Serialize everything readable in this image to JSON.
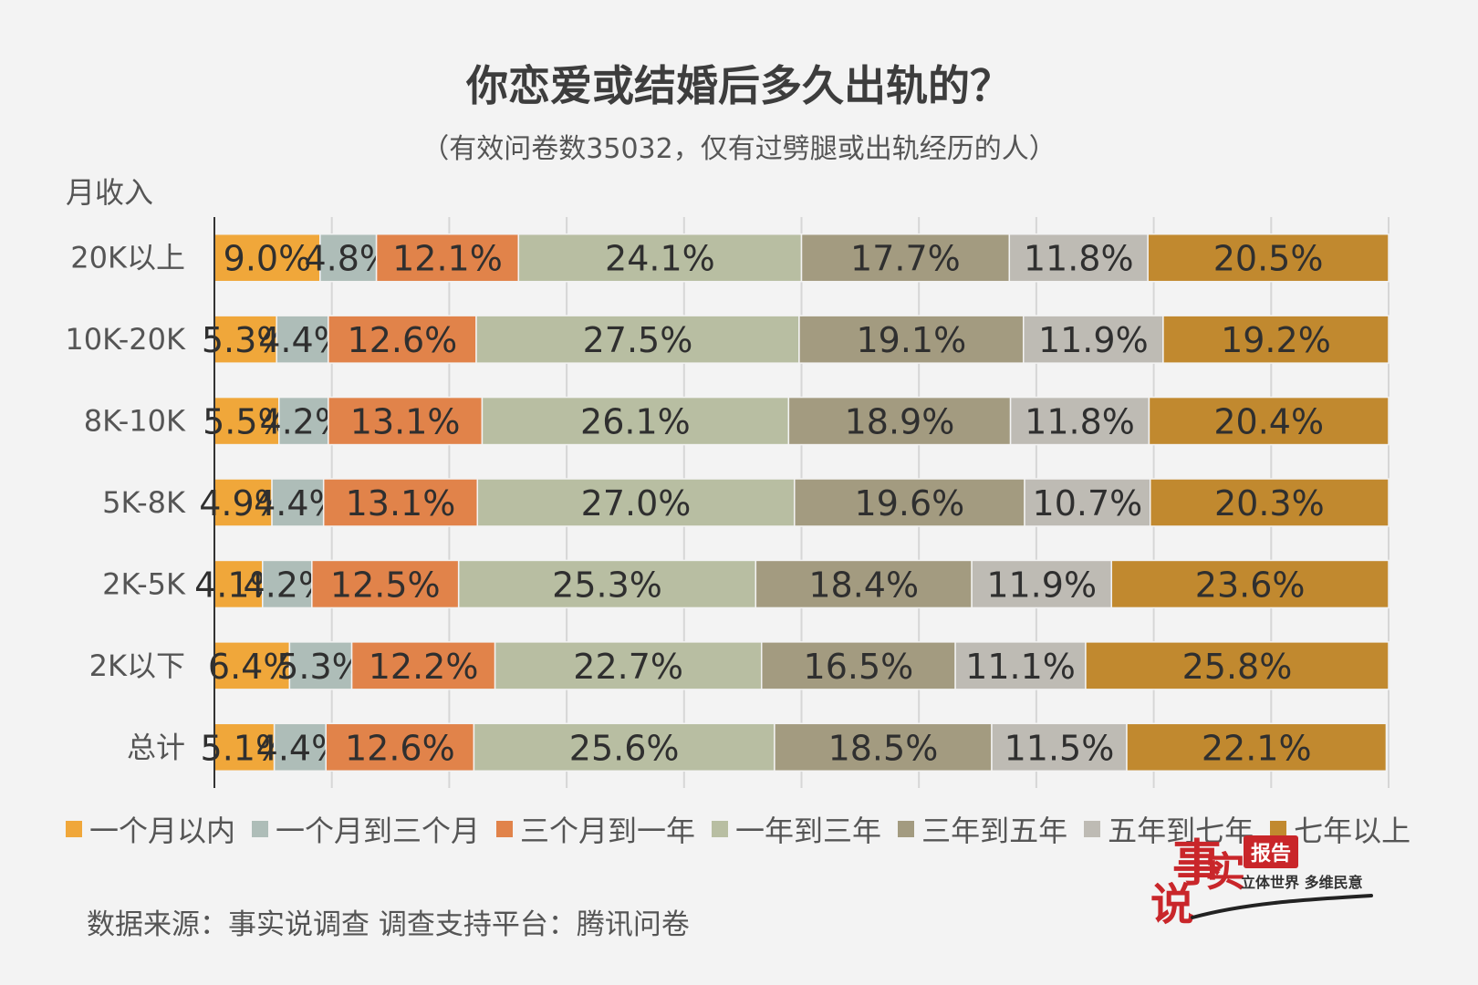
{
  "chart_data": {
    "type": "bar",
    "orientation": "horizontal",
    "stacked": true,
    "title": "你恋爱或结婚后多久出轨的？",
    "subtitle": "（有效问卷数35032，仅有过劈腿或出轨经历的人）",
    "ylabel": "月收入",
    "xlim": [
      0,
      100
    ],
    "grid": true,
    "legend_position": "bottom",
    "categories": [
      "20K以上",
      "10K-20K",
      "8K-10K",
      "5K-8K",
      "2K-5K",
      "2K以下",
      "总计"
    ],
    "series": [
      {
        "name": "一个月以内",
        "color": "#f0a73a",
        "values": [
          9.0,
          5.3,
          5.5,
          4.9,
          4.1,
          6.4,
          5.1
        ]
      },
      {
        "name": "一个月到三个月",
        "color": "#aebdb8",
        "values": [
          4.8,
          4.4,
          4.2,
          4.4,
          4.2,
          5.3,
          4.4
        ]
      },
      {
        "name": "三个月到一年",
        "color": "#e1834a",
        "values": [
          12.1,
          12.6,
          13.1,
          13.1,
          12.5,
          12.2,
          12.6
        ]
      },
      {
        "name": "一年到三年",
        "color": "#b8bea2",
        "values": [
          24.1,
          27.5,
          26.1,
          27.0,
          25.3,
          22.7,
          25.6
        ]
      },
      {
        "name": "三年到五年",
        "color": "#a39b80",
        "values": [
          17.7,
          19.1,
          18.9,
          19.6,
          18.4,
          16.5,
          18.5
        ]
      },
      {
        "name": "五年到七年",
        "color": "#bebbb4",
        "values": [
          11.8,
          11.9,
          11.8,
          10.7,
          11.9,
          11.1,
          11.5
        ]
      },
      {
        "name": "七年以上",
        "color": "#c1892f",
        "values": [
          20.5,
          19.2,
          20.4,
          20.3,
          23.6,
          25.8,
          22.1
        ]
      }
    ]
  },
  "source": "数据来源：事实说调查  调查支持平台：腾讯问卷",
  "logo": {
    "chars": [
      "事",
      "实",
      "说"
    ],
    "badge": "报告",
    "slogan": "立体世界 多维民意"
  }
}
